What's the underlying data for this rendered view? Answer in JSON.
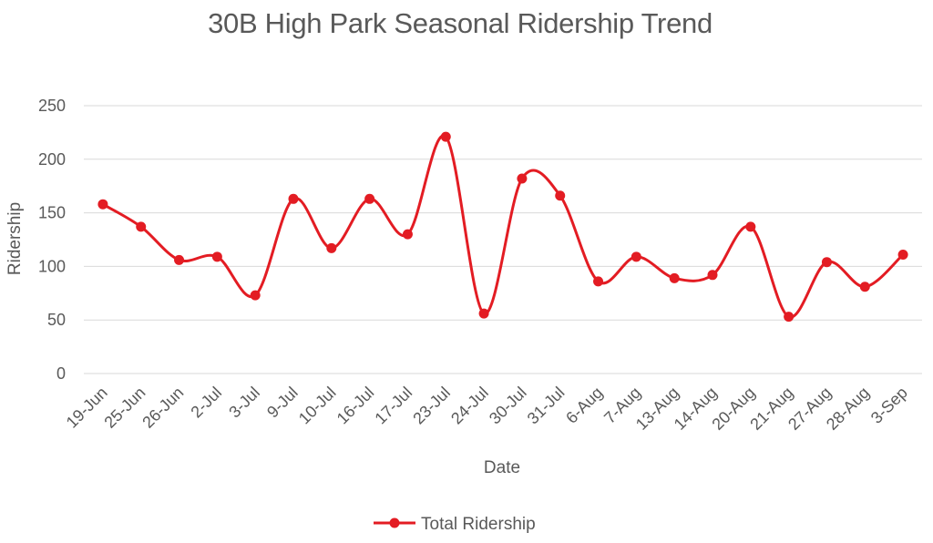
{
  "chart_data": {
    "type": "line",
    "title": "30B High Park Seasonal Ridership Trend",
    "xlabel": "Date",
    "ylabel": "Ridership",
    "ylim": [
      0,
      250
    ],
    "yticks": [
      0,
      50,
      100,
      150,
      200,
      250
    ],
    "grid": "horizontal",
    "legend_position": "bottom",
    "smooth": true,
    "categories": [
      "19-Jun",
      "25-Jun",
      "26-Jun",
      "2-Jul",
      "3-Jul",
      "9-Jul",
      "10-Jul",
      "16-Jul",
      "17-Jul",
      "23-Jul",
      "24-Jul",
      "30-Jul",
      "31-Jul",
      "6-Aug",
      "7-Aug",
      "13-Aug",
      "14-Aug",
      "20-Aug",
      "21-Aug",
      "27-Aug",
      "28-Aug",
      "3-Sep"
    ],
    "series": [
      {
        "name": "Total Ridership",
        "color": "#e31c23",
        "values": [
          158,
          137,
          106,
          109,
          73,
          163,
          117,
          163,
          130,
          221,
          56,
          182,
          166,
          86,
          109,
          89,
          92,
          137,
          53,
          104,
          81,
          111
        ]
      }
    ]
  }
}
